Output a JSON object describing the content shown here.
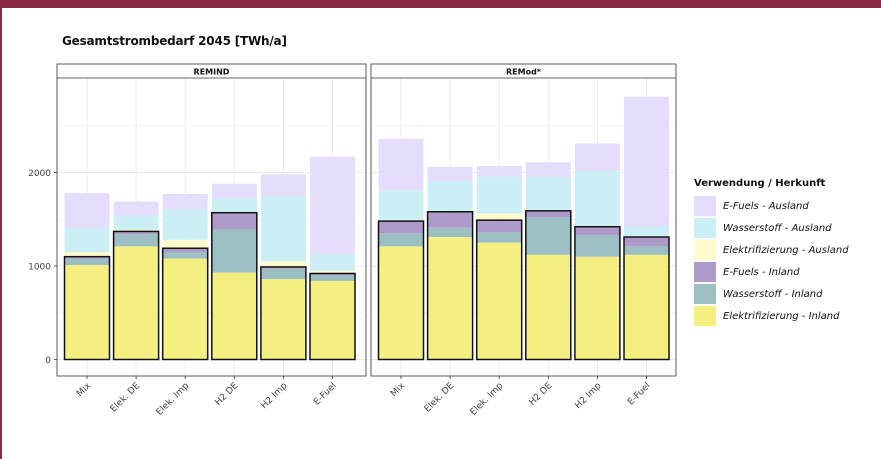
{
  "page_title": "Gesamtstrombedarf 2045 [TWh/a]",
  "legend_title": "Verwendung / Herkunft",
  "chart_data": {
    "type": "bar",
    "stacked": true,
    "title": "Gesamtstrombedarf 2045 [TWh/a]",
    "xlabel": "",
    "ylabel": "",
    "ylim": [
      0,
      3000
    ],
    "yticks": [
      0,
      1000,
      2000
    ],
    "grid": true,
    "legend_position": "right",
    "categories": [
      "Mix",
      "Elek. DE",
      "Elek. Imp",
      "H2 DE",
      "H2 Imp",
      "E-Fuel"
    ],
    "legend": [
      {
        "key": "efuels_ausland",
        "label": "E-Fuels - Ausland",
        "color": "#e6dcfb"
      },
      {
        "key": "wasserstoff_ausland",
        "label": "Wasserstoff - Ausland",
        "color": "#cbeff5"
      },
      {
        "key": "elektrifizierung_ausland",
        "label": "Elektrifizierung - Ausland",
        "color": "#fdfbcb"
      },
      {
        "key": "efuels_inland",
        "label": "E-Fuels - Inland",
        "color": "#ad9ac8"
      },
      {
        "key": "wasserstoff_inland",
        "label": "Wasserstoff - Inland",
        "color": "#9cbfc4"
      },
      {
        "key": "elektrifizierung_inland",
        "label": "Elektrifizierung - Inland",
        "color": "#f5ef82"
      }
    ],
    "stack_order": [
      "elektrifizierung_inland",
      "wasserstoff_inland",
      "efuels_inland",
      "elektrifizierung_ausland",
      "wasserstoff_ausland",
      "efuels_ausland"
    ],
    "inland_keys": [
      "elektrifizierung_inland",
      "wasserstoff_inland",
      "efuels_inland"
    ],
    "panels": [
      {
        "name": "REMIND",
        "values": {
          "elektrifizierung_inland": [
            1010,
            1210,
            1080,
            930,
            860,
            840
          ],
          "wasserstoff_inland": [
            70,
            130,
            70,
            460,
            110,
            60
          ],
          "efuels_inland": [
            20,
            30,
            40,
            180,
            20,
            20
          ],
          "elektrifizierung_ausland": [
            50,
            20,
            90,
            10,
            60,
            30
          ],
          "wasserstoff_ausland": [
            260,
            150,
            330,
            150,
            700,
            180
          ],
          "efuels_ausland": [
            370,
            150,
            160,
            150,
            230,
            1040
          ]
        }
      },
      {
        "name": "REMod*",
        "values": {
          "elektrifizierung_inland": [
            1210,
            1310,
            1250,
            1120,
            1100,
            1120
          ],
          "wasserstoff_inland": [
            140,
            100,
            110,
            400,
            230,
            90
          ],
          "efuels_inland": [
            130,
            170,
            130,
            70,
            90,
            100
          ],
          "elektrifizierung_ausland": [
            10,
            10,
            70,
            10,
            10,
            10
          ],
          "wasserstoff_ausland": [
            320,
            320,
            400,
            350,
            590,
            100
          ],
          "efuels_ausland": [
            550,
            150,
            110,
            160,
            290,
            1390
          ]
        }
      }
    ]
  }
}
